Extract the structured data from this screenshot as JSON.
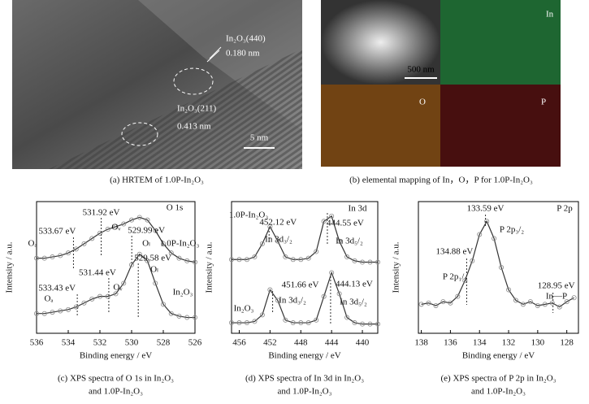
{
  "figures": [
    {
      "caption": "(a) HRTEM of 1.0P-In₂O₃",
      "labels": [
        "In₂O₃(440)",
        "0.180 nm",
        "In₂O₃(211)",
        "0.413 nm",
        "5 nm"
      ]
    },
    {
      "caption": "(b) elemental mapping of In，O，P for 1.0P-In₂O₃",
      "labels": [
        "500 nm",
        "In",
        "O",
        "P"
      ]
    }
  ],
  "chart_data": [
    {
      "type": "line",
      "xlabel": "Binding energy / eV",
      "ylabel": "Intensity / a.u.",
      "caption": [
        "(c) XPS spectra of O 1s in In₂O₃",
        "and 1.0P-In₂O₃"
      ],
      "xlim": [
        536,
        526
      ],
      "xticks": [
        536,
        534,
        532,
        530,
        528,
        526
      ],
      "ylim": [
        0,
        100
      ],
      "x": [
        536,
        535.5,
        535,
        534.5,
        534,
        533.5,
        533,
        532.5,
        532,
        531.5,
        531,
        530.5,
        530,
        529.5,
        529,
        528.5,
        528,
        527.5,
        527,
        526.5,
        526
      ],
      "series": [
        {
          "color": "#333333",
          "values": [
            57,
            57,
            58,
            59,
            61,
            64,
            68,
            72,
            76,
            79,
            81,
            83,
            86,
            88,
            86,
            78,
            68,
            61,
            57,
            55,
            54
          ]
        },
        {
          "color": "#333333",
          "values": [
            15,
            15,
            16,
            17,
            18,
            20,
            23,
            26,
            28,
            28,
            30,
            38,
            52,
            60,
            55,
            38,
            22,
            15,
            13,
            12,
            12
          ]
        }
      ],
      "peaks": [
        {
          "value": 533.67,
          "label": "533.67 eV"
        },
        {
          "value": 531.92,
          "label": "531.92 eV"
        },
        {
          "value": 529.99,
          "label": "529.99 eV"
        },
        {
          "value": 531.44,
          "label": "531.44 eV"
        },
        {
          "value": 529.58,
          "label": "529.58 eV"
        },
        {
          "value": 533.43,
          "label": "533.43 eV"
        }
      ],
      "labels": [
        "O 1s",
        "Oₐ",
        "Oᵥ",
        "Oₗ",
        "1.0P-In₂O₃",
        "Oₐ",
        "Oᵥ",
        "Oₗ",
        "In₂O₃"
      ]
    },
    {
      "type": "line",
      "xlabel": "Binding energy / eV",
      "ylabel": "Intensity / a.u.",
      "caption": [
        "(d) XPS spectra of In 3d in In₂O₃",
        "and 1.0P-In₂O₃"
      ],
      "xlim": [
        457,
        438
      ],
      "xticks": [
        456,
        452,
        448,
        444,
        440
      ],
      "ylim": [
        0,
        100
      ],
      "x": [
        457,
        456,
        455,
        454,
        453,
        452,
        451,
        450,
        449,
        448,
        447,
        446,
        445,
        444,
        443,
        442,
        441,
        440,
        439,
        438
      ],
      "series": [
        {
          "color": "#333333",
          "values": [
            56,
            56,
            56,
            58,
            68,
            81,
            70,
            58,
            56,
            56,
            57,
            62,
            85,
            89,
            70,
            58,
            55,
            54,
            54,
            54
          ]
        },
        {
          "color": "#333333",
          "values": [
            8,
            8,
            8,
            9,
            14,
            33,
            25,
            10,
            8,
            8,
            8,
            10,
            28,
            46,
            30,
            12,
            8,
            7,
            7,
            7
          ]
        }
      ],
      "peaks": [
        {
          "value": 452.12,
          "label": "452.12 eV"
        },
        {
          "value": 444.55,
          "label": "444.55 eV"
        },
        {
          "value": 451.66,
          "label": "451.66 eV"
        },
        {
          "value": 444.13,
          "label": "444.13 eV"
        }
      ],
      "labels": [
        "In 3d",
        "1.0P-In₂O₃",
        "In 3d₃/₂",
        "In 3d₅/₂",
        "In₂O₃",
        "In 3d₃/₂",
        "In 3d₅/₂"
      ]
    },
    {
      "type": "line",
      "xlabel": "Binding energy / eV",
      "ylabel": "Intensity / a.u.",
      "caption": [
        "(e) XPS spectra of P 2p in In₂O₃",
        "and 1.0P-In₂O₃"
      ],
      "xlim": [
        138.2,
        127.2
      ],
      "xticks": [
        138,
        136,
        134,
        132,
        130,
        128
      ],
      "ylim": [
        0,
        100
      ],
      "x": [
        138,
        137.5,
        137,
        136.5,
        136,
        135.5,
        135,
        134.5,
        134,
        133.5,
        133,
        132.5,
        132,
        131.5,
        131,
        130.5,
        130,
        129.5,
        129,
        128.5,
        128,
        127.5
      ],
      "series": [
        {
          "color": "#333333",
          "values": [
            22,
            23,
            21,
            24,
            23,
            28,
            40,
            55,
            75,
            85,
            72,
            50,
            33,
            25,
            22,
            24,
            21,
            22,
            23,
            20,
            24,
            27
          ]
        }
      ],
      "peaks": [
        {
          "value": 133.59,
          "label": "133.59 eV"
        },
        {
          "value": 134.88,
          "label": "134.88 eV"
        },
        {
          "value": 128.95,
          "label": "128.95 eV"
        }
      ],
      "labels": [
        "P 2p",
        "P 2p₃/₂",
        "P 2p₁/₂",
        "In—P"
      ]
    }
  ]
}
